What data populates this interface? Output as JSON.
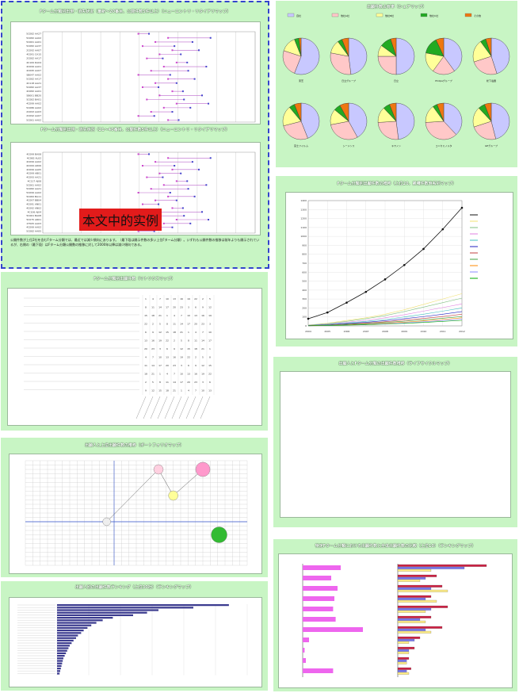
{
  "panels": {
    "top_left_title": "Fターム分類別出現・消失状況（最新～20番目、公開件数5件以上）（ニューエントリ・リタイアリマップ）",
    "mid_left_title": "Fターム分類別出現・消失状況（21～40番目、公開件数5件以上）（ニューエントリ・リタイアリマップ）",
    "legend_items": [
      "開始日",
      "最終",
      "終了日"
    ],
    "overlay_text": "本文中的实例",
    "footer_text": "公開件数が上位2社を含むFターム分類では、最近では減少傾向にあります。（最下段は開示件数の多い上位Fターム分類）。いずれも公開件数の推移は前年よりも開示されているが、右側の（最下段）はFターム分類公開数の推移に対して2000年以降は減少傾向である。",
    "pie_title": "出願件数占有率（シェアマップ）",
    "pie_legend": [
      "自社",
      "他社A社",
      "他社B社",
      "他社C社",
      "その他"
    ],
    "line_title": "Fターム分類別出願件数の推移（上位20、累積件数時系列マップ）",
    "matrix_title": "Fターム分類別出願件数（マトリクスマップ）",
    "bubble_title": "出願人と上位出願件数の推移（ポートフォリオマップ）",
    "lifecycle_title": "出願人とFターム分類の出願件数推移（ライフサイクルマップ）",
    "bar_title": "出願人別の出願件数ランキング（上位30社）（ランキングマップ）",
    "rank_title": "特定Fターム分類における出願件数と全体出願件数の比較（上位10）（ランキングマップ）"
  },
  "chart_data": [
    {
      "type": "scatter",
      "name": "newentry-map-1",
      "categories": [
        "5C082 AA27",
        "5C082 AA02",
        "5C061 AA01",
        "5C082 AA37",
        "2C092 AA07",
        "4C091 CA15",
        "2C082 AA17",
        "4C109 DA04",
        "4C099 AA01",
        "4C095 AA07",
        "5B047 AA02",
        "5C082 AA17",
        "4C118 AA21",
        "5C082 AA37",
        "4C082 AA01",
        "5B001 BB20",
        "5C082 BA01",
        "4C099 AA02",
        "5C086 AA02",
        "2C093 AA03",
        "2C092 AA07",
        "5C061 AA02"
      ]
    },
    {
      "type": "scatter",
      "name": "newentry-map-2",
      "categories": [
        "4C099 BA08",
        "4C082 AL02",
        "4C099 AA02",
        "4C099 AD06",
        "4C099 AA05",
        "4C099 AB01",
        "4C093 AA21",
        "4C117 AJ08",
        "5C061 AA02",
        "5C082 AA21",
        "5C099 AA02",
        "5C082 BA11",
        "4C097 BB04",
        "4C091 AN01",
        "4C092 AN02",
        "4C106 AJ04",
        "5C061 BA08",
        "5C075 AR01",
        "27505 AA03",
        "4C099 AA02",
        "5C082 AA05"
      ]
    },
    {
      "type": "pie",
      "name": "share-map",
      "series_names": [
        "自社",
        "他社A社",
        "他社B社",
        "他社C社",
        "その他"
      ],
      "colors": [
        "#c8c8ff",
        "#ffc8c8",
        "#ffff99",
        "#22aa22",
        "#ee7711"
      ],
      "pies": [
        {
          "label": "東芝",
          "values": [
            56,
            24,
            14,
            4,
            2
          ]
        },
        {
          "label": "日立グループ",
          "values": [
            48,
            30,
            12,
            4,
            6
          ]
        },
        {
          "label": "日立",
          "values": [
            50,
            25,
            10,
            10,
            5
          ]
        },
        {
          "label": "Philipsグループ",
          "values": [
            40,
            20,
            18,
            15,
            7
          ]
        },
        {
          "label": "松下電器",
          "values": [
            45,
            25,
            20,
            5,
            5
          ]
        },
        {
          "label": "富士フイルム",
          "values": [
            44,
            27,
            18,
            5,
            6
          ]
        },
        {
          "label": "シーメンス",
          "values": [
            42,
            30,
            14,
            6,
            8
          ]
        },
        {
          "label": "キヤノン",
          "values": [
            48,
            26,
            14,
            6,
            6
          ]
        },
        {
          "label": "コニカミノルタ",
          "values": [
            38,
            36,
            16,
            4,
            6
          ]
        },
        {
          "label": "GEグループ",
          "values": [
            46,
            24,
            18,
            6,
            6
          ]
        }
      ]
    },
    {
      "type": "line",
      "name": "cumulative-map",
      "x": [
        "2004",
        "2005",
        "2006",
        "2007",
        "2008",
        "2009",
        "2010",
        "2011",
        "2012"
      ],
      "ylim": [
        0,
        1400
      ],
      "series": [
        {
          "values": [
            80,
            150,
            260,
            380,
            520,
            680,
            860,
            1080,
            1320
          ],
          "color": "#111111"
        },
        {
          "values": [
            10,
            30,
            60,
            90,
            130,
            180,
            240,
            300,
            360
          ],
          "color": "#f0e070"
        },
        {
          "values": [
            8,
            25,
            50,
            80,
            115,
            160,
            210,
            260,
            310
          ],
          "color": "#80c080"
        },
        {
          "values": [
            6,
            20,
            40,
            62,
            90,
            125,
            165,
            205,
            245
          ],
          "color": "#e080e0"
        },
        {
          "values": [
            5,
            16,
            32,
            50,
            72,
            100,
            130,
            165,
            200
          ],
          "color": "#40c0c0"
        },
        {
          "values": [
            4,
            12,
            25,
            40,
            58,
            80,
            104,
            130,
            160
          ],
          "color": "#2020c0"
        },
        {
          "values": [
            3,
            10,
            20,
            32,
            46,
            64,
            84,
            105,
            130
          ],
          "color": "#c04040"
        },
        {
          "values": [
            2,
            8,
            16,
            26,
            38,
            52,
            68,
            86,
            105
          ],
          "color": "#40a040"
        },
        {
          "values": [
            2,
            6,
            12,
            20,
            30,
            42,
            56,
            72,
            90
          ],
          "color": "#ff8800"
        },
        {
          "values": [
            1,
            5,
            10,
            16,
            24,
            34,
            46,
            60,
            75
          ],
          "color": "#8888ff"
        },
        {
          "values": [
            1,
            4,
            8,
            13,
            20,
            28,
            38,
            50,
            62
          ],
          "color": "#00aa00"
        }
      ]
    },
    {
      "type": "scatter",
      "name": "portfolio-map",
      "points": [
        {
          "x": 110,
          "y": 0,
          "r": 5,
          "color": "#eeeeee"
        },
        {
          "x": 180,
          "y": 12,
          "r": 6,
          "color": "#ffd0e0"
        },
        {
          "x": 200,
          "y": 6,
          "r": 6,
          "color": "#ffff99"
        },
        {
          "x": 240,
          "y": 12,
          "r": 9,
          "color": "#ff99cc"
        },
        {
          "x": 262,
          "y": -3,
          "r": 10,
          "color": "#33bb33"
        }
      ]
    },
    {
      "type": "bar",
      "name": "ranking-map",
      "values": [
        2711,
        2150,
        1600,
        1420,
        1200,
        880,
        720,
        620,
        540,
        480,
        420,
        380,
        330,
        300,
        260,
        230,
        200,
        180,
        160,
        140,
        120,
        100,
        90,
        80,
        70,
        60,
        50,
        40
      ]
    },
    {
      "type": "bar",
      "name": "compare-map",
      "left_values": [
        60,
        45,
        55,
        50,
        48,
        52,
        95,
        10,
        3,
        5,
        48
      ],
      "right_values": [
        [
          80,
          60,
          30
        ],
        [
          35,
          25,
          20
        ],
        [
          40,
          30,
          45
        ],
        [
          30,
          25,
          35
        ],
        [
          45,
          30,
          25
        ],
        [
          30,
          20,
          25
        ],
        [
          40,
          25,
          30
        ],
        [
          20,
          15,
          10
        ],
        [
          15,
          10,
          10
        ],
        [
          10,
          8,
          8
        ],
        [
          12,
          8,
          10
        ]
      ]
    }
  ]
}
